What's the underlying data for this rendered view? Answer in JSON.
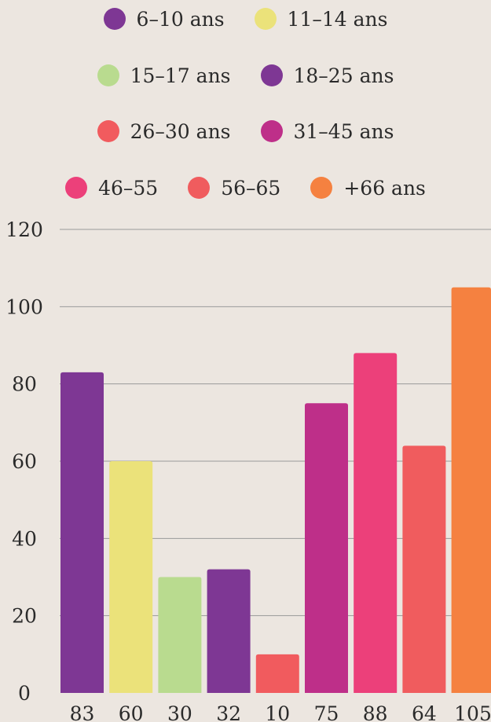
{
  "chart_data": {
    "type": "bar",
    "categories": [
      "6–10 ans",
      "11–14 ans",
      "15–17 ans",
      "18–25 ans",
      "26–30 ans",
      "31–45 ans",
      "46–55",
      "56–65",
      "+66 ans"
    ],
    "values": [
      83,
      60,
      30,
      32,
      10,
      75,
      88,
      64,
      105
    ],
    "value_labels": [
      "83",
      "60",
      "30",
      "32",
      "10",
      "75",
      "88",
      "64",
      "105"
    ],
    "colors": [
      "#7E3794",
      "#EBE27A",
      "#B9DB8F",
      "#7E3794",
      "#F15B5E",
      "#BE2F89",
      "#EC407A",
      "#F05C5E",
      "#F58140"
    ],
    "y_ticks": [
      "0",
      "20",
      "40",
      "60",
      "80",
      "100",
      "120"
    ],
    "ylim": [
      0,
      120
    ],
    "grid": true,
    "legend_position": "top"
  },
  "legend": {
    "rows": [
      [
        {
          "label": "6–10 ans",
          "color": "#7E3794"
        },
        {
          "label": "11–14 ans",
          "color": "#EBE27A"
        }
      ],
      [
        {
          "label": "15–17 ans",
          "color": "#B9DB8F"
        },
        {
          "label": "18–25 ans",
          "color": "#7E3794"
        }
      ],
      [
        {
          "label": "26–30 ans",
          "color": "#F15B5E"
        },
        {
          "label": "31–45 ans",
          "color": "#BE2F89"
        }
      ],
      [
        {
          "label": "46–55",
          "color": "#EC407A"
        },
        {
          "label": "56–65",
          "color": "#F05C5E"
        },
        {
          "label": "+66 ans",
          "color": "#F58140"
        }
      ]
    ]
  }
}
